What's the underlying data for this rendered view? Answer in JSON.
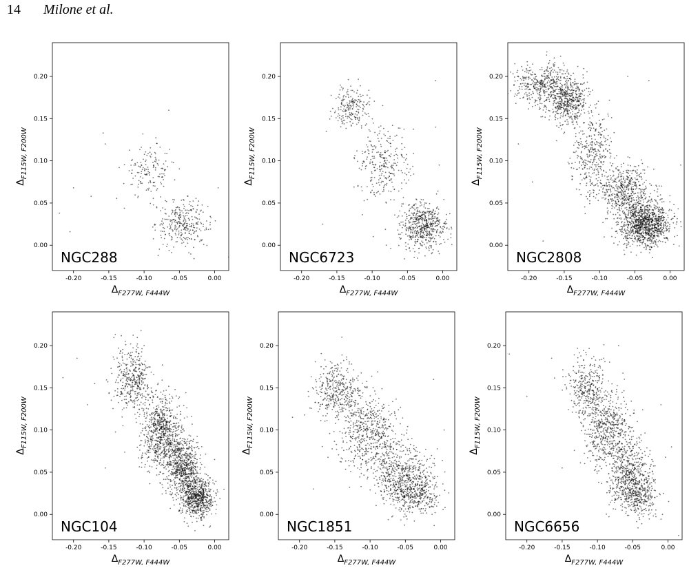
{
  "header": {
    "page_number": "14",
    "authors": "Milone et al."
  },
  "axis_text": {
    "delta": "Δ",
    "x_sub": "F277W, F444W",
    "y_sub": "F115W, F200W"
  },
  "chart_data": [
    {
      "type": "scatter",
      "panel_label": "NGC288",
      "xlim": [
        -0.23,
        0.02
      ],
      "ylim": [
        -0.03,
        0.24
      ],
      "xticks": [
        -0.2,
        -0.15,
        -0.1,
        -0.05,
        0.0
      ],
      "yticks": [
        0.0,
        0.05,
        0.1,
        0.15,
        0.2
      ],
      "xlabel": "ΔF277W, F444W",
      "ylabel": "ΔF115W, F200W",
      "point_color": "#000000",
      "clusters": [
        {
          "x": -0.092,
          "y": 0.088,
          "sx": 0.018,
          "sy": 0.016,
          "n": 150
        },
        {
          "x": -0.045,
          "y": 0.025,
          "sx": 0.018,
          "sy": 0.013,
          "n": 300
        }
      ],
      "outliers": [
        [
          -0.2,
          0.068
        ],
        [
          -0.22,
          0.038
        ],
        [
          -0.205,
          0.016
        ],
        [
          -0.175,
          0.058
        ],
        [
          -0.155,
          0.12
        ],
        [
          -0.158,
          0.133
        ],
        [
          -0.065,
          0.16
        ],
        [
          0.005,
          0.068
        ],
        [
          0.02,
          -0.014
        ]
      ]
    },
    {
      "type": "scatter",
      "panel_label": "NGC6723",
      "xlim": [
        -0.23,
        0.02
      ],
      "ylim": [
        -0.03,
        0.24
      ],
      "xticks": [
        -0.2,
        -0.15,
        -0.1,
        -0.05,
        0.0
      ],
      "yticks": [
        0.0,
        0.05,
        0.1,
        0.15,
        0.2
      ],
      "xlabel": "ΔF277W, F444W",
      "ylabel": "ΔF115W, F200W",
      "point_color": "#000000",
      "clusters": [
        {
          "x": -0.128,
          "y": 0.162,
          "sx": 0.013,
          "sy": 0.013,
          "n": 200
        },
        {
          "x": -0.085,
          "y": 0.095,
          "sx": 0.018,
          "sy": 0.022,
          "n": 280
        },
        {
          "x": -0.028,
          "y": 0.022,
          "sx": 0.016,
          "sy": 0.013,
          "n": 550
        }
      ],
      "outliers": [
        [
          -0.17,
          0.025
        ],
        [
          -0.08,
          0.0
        ],
        [
          -0.08,
          0.05
        ],
        [
          -0.01,
          0.14
        ],
        [
          -0.01,
          0.195
        ],
        [
          -0.005,
          0.095
        ],
        [
          -0.165,
          0.135
        ]
      ]
    },
    {
      "type": "scatter",
      "panel_label": "NGC2808",
      "xlim": [
        -0.23,
        0.02
      ],
      "ylim": [
        -0.03,
        0.24
      ],
      "xticks": [
        -0.2,
        -0.15,
        -0.1,
        -0.05,
        0.0
      ],
      "yticks": [
        0.0,
        0.05,
        0.1,
        0.15,
        0.2
      ],
      "xlabel": "ΔF277W, F444W",
      "ylabel": "ΔF115W, F200W",
      "point_color": "#000000",
      "clusters": [
        {
          "x": -0.18,
          "y": 0.19,
          "sx": 0.022,
          "sy": 0.013,
          "n": 450
        },
        {
          "x": -0.145,
          "y": 0.17,
          "sx": 0.015,
          "sy": 0.013,
          "n": 450
        },
        {
          "x": -0.11,
          "y": 0.11,
          "sx": 0.015,
          "sy": 0.025,
          "n": 350
        },
        {
          "x": -0.065,
          "y": 0.065,
          "sx": 0.018,
          "sy": 0.015,
          "n": 500
        },
        {
          "x": -0.035,
          "y": 0.025,
          "sx": 0.018,
          "sy": 0.013,
          "n": 1100
        }
      ],
      "outliers": [
        [
          -0.22,
          0.215
        ],
        [
          -0.23,
          0.18
        ],
        [
          -0.215,
          0.12
        ],
        [
          -0.195,
          0.075
        ],
        [
          -0.18,
          0.005
        ],
        [
          -0.03,
          0.195
        ],
        [
          0.015,
          0.095
        ],
        [
          -0.06,
          0.2
        ]
      ]
    },
    {
      "type": "scatter",
      "panel_label": "NGC104",
      "xlim": [
        -0.23,
        0.02
      ],
      "ylim": [
        -0.03,
        0.24
      ],
      "xticks": [
        -0.2,
        -0.15,
        -0.1,
        -0.05,
        0.0
      ],
      "yticks": [
        0.0,
        0.05,
        0.1,
        0.15,
        0.2
      ],
      "xlabel": "ΔF277W, F444W",
      "ylabel": "ΔF115W, F200W",
      "point_color": "#000000",
      "clusters": [
        {
          "x": -0.115,
          "y": 0.16,
          "sx": 0.014,
          "sy": 0.02,
          "n": 400
        },
        {
          "x": -0.075,
          "y": 0.095,
          "sx": 0.014,
          "sy": 0.022,
          "n": 750
        },
        {
          "x": -0.045,
          "y": 0.055,
          "sx": 0.012,
          "sy": 0.018,
          "n": 650
        },
        {
          "x": -0.025,
          "y": 0.02,
          "sx": 0.012,
          "sy": 0.012,
          "n": 650
        }
      ],
      "outliers": [
        [
          -0.215,
          0.162
        ],
        [
          -0.195,
          0.185
        ],
        [
          -0.18,
          0.13
        ],
        [
          -0.17,
          0.155
        ],
        [
          -0.155,
          0.055
        ],
        [
          -0.13,
          0.105
        ],
        [
          -0.1,
          0.2
        ],
        [
          -0.1,
          0.14
        ],
        [
          0.0,
          0.065
        ]
      ]
    },
    {
      "type": "scatter",
      "panel_label": "NGC1851",
      "xlim": [
        -0.23,
        0.02
      ],
      "ylim": [
        -0.03,
        0.24
      ],
      "xticks": [
        -0.2,
        -0.15,
        -0.1,
        -0.05,
        0.0
      ],
      "yticks": [
        0.0,
        0.05,
        0.1,
        0.15,
        0.2
      ],
      "xlabel": "ΔF277W, F444W",
      "ylabel": "ΔF115W, F200W",
      "point_color": "#000000",
      "clusters": [
        {
          "x": -0.145,
          "y": 0.145,
          "sx": 0.018,
          "sy": 0.018,
          "n": 400
        },
        {
          "x": -0.1,
          "y": 0.095,
          "sx": 0.022,
          "sy": 0.022,
          "n": 550
        },
        {
          "x": -0.055,
          "y": 0.045,
          "sx": 0.02,
          "sy": 0.018,
          "n": 500
        },
        {
          "x": -0.035,
          "y": 0.025,
          "sx": 0.018,
          "sy": 0.012,
          "n": 350
        }
      ],
      "outliers": [
        [
          -0.21,
          0.115
        ],
        [
          -0.18,
          0.03
        ],
        [
          -0.14,
          0.21
        ],
        [
          0.005,
          0.1
        ],
        [
          -0.01,
          0.16
        ]
      ]
    },
    {
      "type": "scatter",
      "panel_label": "NGC6656",
      "xlim": [
        -0.23,
        0.02
      ],
      "ylim": [
        -0.03,
        0.24
      ],
      "xticks": [
        -0.2,
        -0.15,
        -0.1,
        -0.05,
        0.0
      ],
      "yticks": [
        0.0,
        0.05,
        0.1,
        0.15,
        0.2
      ],
      "xlabel": "ΔF277W, F444W",
      "ylabel": "ΔF115W, F200W",
      "point_color": "#000000",
      "clusters": [
        {
          "x": -0.115,
          "y": 0.15,
          "sx": 0.014,
          "sy": 0.018,
          "n": 350
        },
        {
          "x": -0.085,
          "y": 0.1,
          "sx": 0.016,
          "sy": 0.022,
          "n": 550
        },
        {
          "x": -0.055,
          "y": 0.055,
          "sx": 0.015,
          "sy": 0.018,
          "n": 350
        },
        {
          "x": -0.045,
          "y": 0.025,
          "sx": 0.016,
          "sy": 0.013,
          "n": 450
        }
      ],
      "outliers": [
        [
          -0.225,
          0.19
        ],
        [
          -0.2,
          0.14
        ],
        [
          -0.165,
          0.185
        ],
        [
          -0.15,
          0.055
        ],
        [
          0.015,
          -0.025
        ],
        [
          0.005,
          0.08
        ],
        [
          -0.01,
          0.13
        ],
        [
          -0.07,
          0.2
        ]
      ]
    }
  ]
}
